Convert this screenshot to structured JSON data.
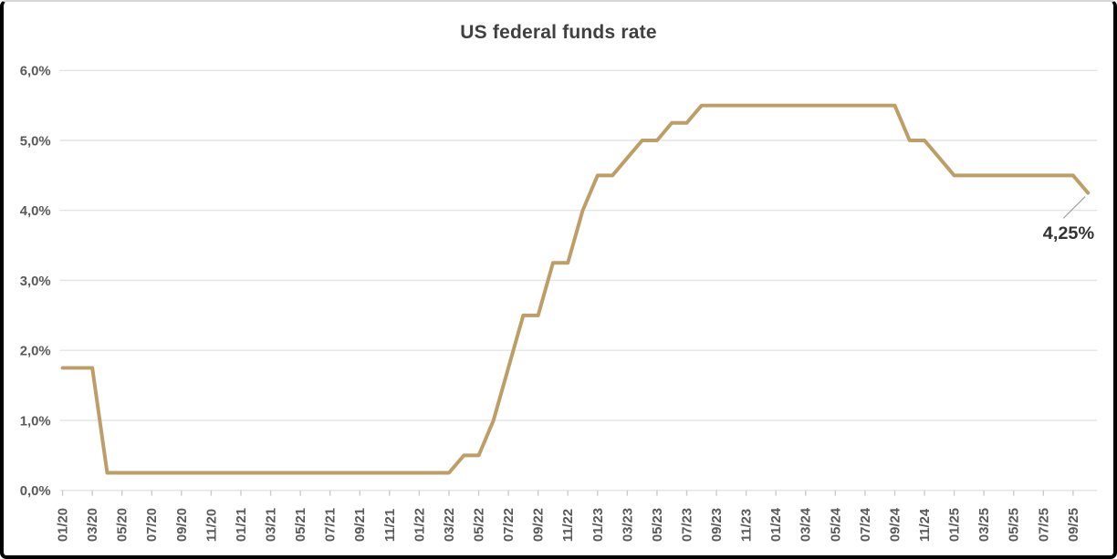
{
  "title": "US federal funds rate",
  "colors": {
    "line": "#BC9E66",
    "grid": "#E4E4E4",
    "tick": "#CCCCCC",
    "axis_text": "#595959",
    "title_text": "#404040",
    "annotation_text": "#333333",
    "leader_line": "#A6A6A6",
    "frame_border": "#000000",
    "background": "#FFFFFF"
  },
  "chart_data": {
    "type": "line",
    "title": "US federal funds rate",
    "xlabel": "",
    "ylabel": "",
    "ylim": [
      0,
      6
    ],
    "grid": "horizontal",
    "legend": "none",
    "y_ticks": [
      "0,0%",
      "1,0%",
      "2,0%",
      "3,0%",
      "4,0%",
      "5,0%",
      "6,0%"
    ],
    "x_tick_labels": [
      "01/20",
      "03/20",
      "05/20",
      "07/20",
      "09/20",
      "11/20",
      "01/21",
      "03/21",
      "05/21",
      "07/21",
      "09/21",
      "11/21",
      "01/22",
      "03/22",
      "05/22",
      "07/22",
      "09/22",
      "11/22",
      "01/23",
      "03/23",
      "05/23",
      "07/23",
      "09/23",
      "11/23",
      "01/24",
      "03/24",
      "05/24",
      "07/24",
      "09/24",
      "11/24",
      "01/25",
      "03/25",
      "05/25",
      "07/25",
      "09/25"
    ],
    "x": [
      "01/20",
      "02/20",
      "03/20",
      "04/20",
      "05/20",
      "06/20",
      "07/20",
      "08/20",
      "09/20",
      "10/20",
      "11/20",
      "12/20",
      "01/21",
      "02/21",
      "03/21",
      "04/21",
      "05/21",
      "06/21",
      "07/21",
      "08/21",
      "09/21",
      "10/21",
      "11/21",
      "12/21",
      "01/22",
      "02/22",
      "03/22",
      "04/22",
      "05/22",
      "06/22",
      "07/22",
      "08/22",
      "09/22",
      "10/22",
      "11/22",
      "12/22",
      "01/23",
      "02/23",
      "03/23",
      "04/23",
      "05/23",
      "06/23",
      "07/23",
      "08/23",
      "09/23",
      "10/23",
      "11/23",
      "12/23",
      "01/24",
      "02/24",
      "03/24",
      "04/24",
      "05/24",
      "06/24",
      "07/24",
      "08/24",
      "09/24",
      "10/24",
      "11/24",
      "12/24",
      "01/25",
      "02/25",
      "03/25",
      "04/25",
      "05/25",
      "06/25",
      "07/25",
      "08/25",
      "09/25",
      "10/25"
    ],
    "values": [
      1.75,
      1.75,
      1.75,
      0.25,
      0.25,
      0.25,
      0.25,
      0.25,
      0.25,
      0.25,
      0.25,
      0.25,
      0.25,
      0.25,
      0.25,
      0.25,
      0.25,
      0.25,
      0.25,
      0.25,
      0.25,
      0.25,
      0.25,
      0.25,
      0.25,
      0.25,
      0.25,
      0.5,
      0.5,
      1.0,
      1.75,
      2.5,
      2.5,
      3.25,
      3.25,
      4.0,
      4.5,
      4.5,
      4.75,
      5.0,
      5.0,
      5.25,
      5.25,
      5.5,
      5.5,
      5.5,
      5.5,
      5.5,
      5.5,
      5.5,
      5.5,
      5.5,
      5.5,
      5.5,
      5.5,
      5.5,
      5.5,
      5.0,
      5.0,
      4.75,
      4.5,
      4.5,
      4.5,
      4.5,
      4.5,
      4.5,
      4.5,
      4.5,
      4.5,
      4.25
    ],
    "annotation": {
      "text": "4,25%",
      "x": "10/25",
      "value": 4.25
    }
  }
}
